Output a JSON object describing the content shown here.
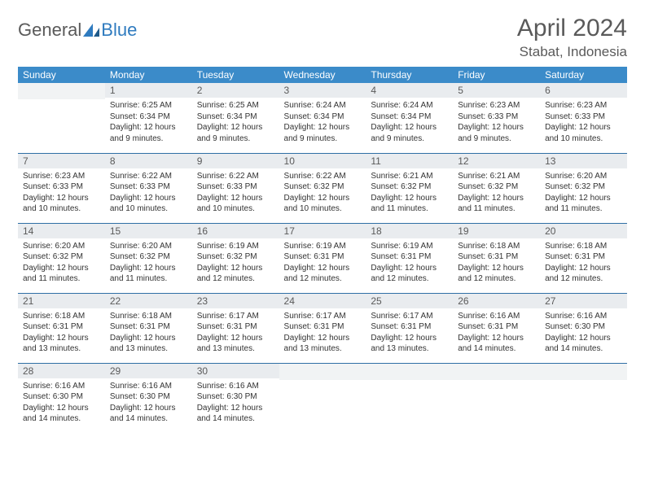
{
  "logo": {
    "text1": "General",
    "text2": "Blue",
    "shape_color": "#2f7bbf"
  },
  "colors": {
    "header_bg": "#3b8bc9",
    "header_fg": "#ffffff",
    "daynum_bg": "#e9ecef",
    "row_divider": "#2f6fa5",
    "text": "#333333",
    "title": "#5a5a5a",
    "page_bg": "#ffffff"
  },
  "title": "April 2024",
  "location": "Stabat, Indonesia",
  "weekdays": [
    "Sunday",
    "Monday",
    "Tuesday",
    "Wednesday",
    "Thursday",
    "Friday",
    "Saturday"
  ],
  "weeks": [
    [
      null,
      {
        "n": "1",
        "sr": "6:25 AM",
        "ss": "6:34 PM",
        "dl": "12 hours and 9 minutes."
      },
      {
        "n": "2",
        "sr": "6:25 AM",
        "ss": "6:34 PM",
        "dl": "12 hours and 9 minutes."
      },
      {
        "n": "3",
        "sr": "6:24 AM",
        "ss": "6:34 PM",
        "dl": "12 hours and 9 minutes."
      },
      {
        "n": "4",
        "sr": "6:24 AM",
        "ss": "6:34 PM",
        "dl": "12 hours and 9 minutes."
      },
      {
        "n": "5",
        "sr": "6:23 AM",
        "ss": "6:33 PM",
        "dl": "12 hours and 9 minutes."
      },
      {
        "n": "6",
        "sr": "6:23 AM",
        "ss": "6:33 PM",
        "dl": "12 hours and 10 minutes."
      }
    ],
    [
      {
        "n": "7",
        "sr": "6:23 AM",
        "ss": "6:33 PM",
        "dl": "12 hours and 10 minutes."
      },
      {
        "n": "8",
        "sr": "6:22 AM",
        "ss": "6:33 PM",
        "dl": "12 hours and 10 minutes."
      },
      {
        "n": "9",
        "sr": "6:22 AM",
        "ss": "6:33 PM",
        "dl": "12 hours and 10 minutes."
      },
      {
        "n": "10",
        "sr": "6:22 AM",
        "ss": "6:32 PM",
        "dl": "12 hours and 10 minutes."
      },
      {
        "n": "11",
        "sr": "6:21 AM",
        "ss": "6:32 PM",
        "dl": "12 hours and 11 minutes."
      },
      {
        "n": "12",
        "sr": "6:21 AM",
        "ss": "6:32 PM",
        "dl": "12 hours and 11 minutes."
      },
      {
        "n": "13",
        "sr": "6:20 AM",
        "ss": "6:32 PM",
        "dl": "12 hours and 11 minutes."
      }
    ],
    [
      {
        "n": "14",
        "sr": "6:20 AM",
        "ss": "6:32 PM",
        "dl": "12 hours and 11 minutes."
      },
      {
        "n": "15",
        "sr": "6:20 AM",
        "ss": "6:32 PM",
        "dl": "12 hours and 11 minutes."
      },
      {
        "n": "16",
        "sr": "6:19 AM",
        "ss": "6:32 PM",
        "dl": "12 hours and 12 minutes."
      },
      {
        "n": "17",
        "sr": "6:19 AM",
        "ss": "6:31 PM",
        "dl": "12 hours and 12 minutes."
      },
      {
        "n": "18",
        "sr": "6:19 AM",
        "ss": "6:31 PM",
        "dl": "12 hours and 12 minutes."
      },
      {
        "n": "19",
        "sr": "6:18 AM",
        "ss": "6:31 PM",
        "dl": "12 hours and 12 minutes."
      },
      {
        "n": "20",
        "sr": "6:18 AM",
        "ss": "6:31 PM",
        "dl": "12 hours and 12 minutes."
      }
    ],
    [
      {
        "n": "21",
        "sr": "6:18 AM",
        "ss": "6:31 PM",
        "dl": "12 hours and 13 minutes."
      },
      {
        "n": "22",
        "sr": "6:18 AM",
        "ss": "6:31 PM",
        "dl": "12 hours and 13 minutes."
      },
      {
        "n": "23",
        "sr": "6:17 AM",
        "ss": "6:31 PM",
        "dl": "12 hours and 13 minutes."
      },
      {
        "n": "24",
        "sr": "6:17 AM",
        "ss": "6:31 PM",
        "dl": "12 hours and 13 minutes."
      },
      {
        "n": "25",
        "sr": "6:17 AM",
        "ss": "6:31 PM",
        "dl": "12 hours and 13 minutes."
      },
      {
        "n": "26",
        "sr": "6:16 AM",
        "ss": "6:31 PM",
        "dl": "12 hours and 14 minutes."
      },
      {
        "n": "27",
        "sr": "6:16 AM",
        "ss": "6:30 PM",
        "dl": "12 hours and 14 minutes."
      }
    ],
    [
      {
        "n": "28",
        "sr": "6:16 AM",
        "ss": "6:30 PM",
        "dl": "12 hours and 14 minutes."
      },
      {
        "n": "29",
        "sr": "6:16 AM",
        "ss": "6:30 PM",
        "dl": "12 hours and 14 minutes."
      },
      {
        "n": "30",
        "sr": "6:16 AM",
        "ss": "6:30 PM",
        "dl": "12 hours and 14 minutes."
      },
      null,
      null,
      null,
      null
    ]
  ],
  "labels": {
    "sunrise": "Sunrise:",
    "sunset": "Sunset:",
    "daylight": "Daylight:"
  }
}
